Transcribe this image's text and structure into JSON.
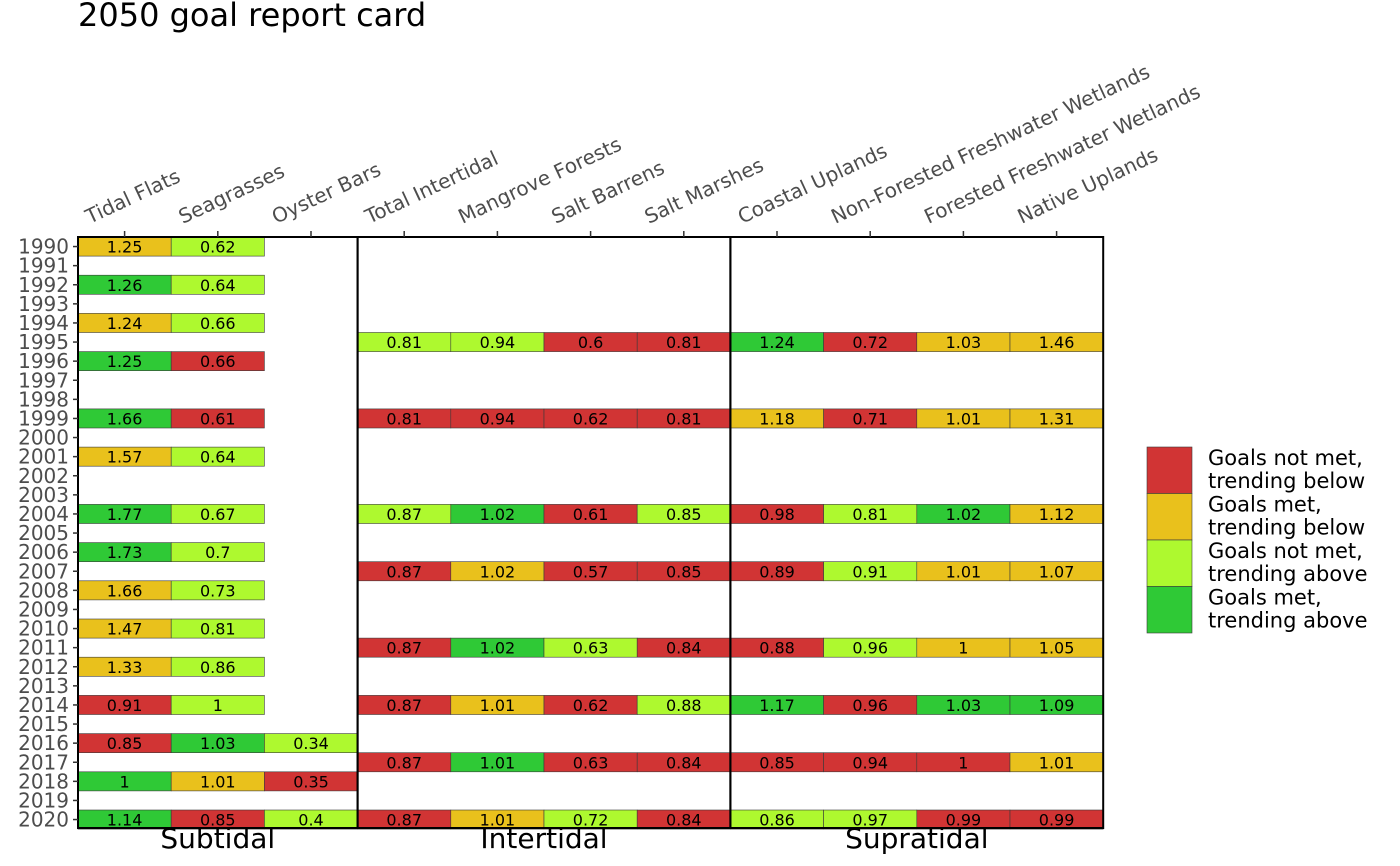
{
  "chart_data": {
    "type": "heatmap",
    "title": "2050 goal report card",
    "columns": [
      "Tidal Flats",
      "Seagrasses",
      "Oyster Bars",
      "Total Intertidal",
      "Mangrove Forests",
      "Salt Barrens",
      "Salt Marshes",
      "Coastal Uplands",
      "Non-Forested Freshwater Wetlands",
      "Forested Freshwater Wetlands",
      "Native Uplands"
    ],
    "groups": [
      {
        "name": "Subtidal",
        "columns": [
          "Tidal Flats",
          "Seagrasses",
          "Oyster Bars"
        ]
      },
      {
        "name": "Intertidal",
        "columns": [
          "Total Intertidal",
          "Mangrove Forests",
          "Salt Barrens",
          "Salt Marshes"
        ]
      },
      {
        "name": "Supratidal",
        "columns": [
          "Coastal Uplands",
          "Non-Forested Freshwater Wetlands",
          "Forested Freshwater Wetlands",
          "Native Uplands"
        ]
      }
    ],
    "years": [
      "1990",
      "1991",
      "1992",
      "1993",
      "1994",
      "1995",
      "1996",
      "1997",
      "1998",
      "1999",
      "2000",
      "2001",
      "2002",
      "2003",
      "2004",
      "2005",
      "2006",
      "2007",
      "2008",
      "2009",
      "2010",
      "2011",
      "2012",
      "2013",
      "2014",
      "2015",
      "2016",
      "2017",
      "2018",
      "2019",
      "2020"
    ],
    "categories": [
      {
        "key": "nm_below",
        "label": "Goals not met, trending below",
        "lines": [
          "Goals not met,",
          "trending below"
        ],
        "color": "#D13434"
      },
      {
        "key": "m_below",
        "label": "Goals met, trending below",
        "lines": [
          "Goals met,",
          "trending below"
        ],
        "color": "#E9C11C"
      },
      {
        "key": "nm_above",
        "label": "Goals not met, trending above",
        "lines": [
          "Goals not met,",
          "trending above"
        ],
        "color": "#AEF92F"
      },
      {
        "key": "m_above",
        "label": "Goals met, trending above",
        "lines": [
          "Goals met,",
          "trending above"
        ],
        "color": "#2FC936"
      }
    ],
    "rows": [
      {
        "year": "1990",
        "cells": [
          [
            "1.25",
            "m_below"
          ],
          [
            "0.62",
            "nm_above"
          ],
          null,
          null,
          null,
          null,
          null,
          null,
          null,
          null,
          null
        ]
      },
      {
        "year": "1992",
        "cells": [
          [
            "1.26",
            "m_above"
          ],
          [
            "0.64",
            "nm_above"
          ],
          null,
          null,
          null,
          null,
          null,
          null,
          null,
          null,
          null
        ]
      },
      {
        "year": "1994",
        "cells": [
          [
            "1.24",
            "m_below"
          ],
          [
            "0.66",
            "nm_above"
          ],
          null,
          null,
          null,
          null,
          null,
          null,
          null,
          null,
          null
        ]
      },
      {
        "year": "1995",
        "cells": [
          null,
          null,
          null,
          [
            "0.81",
            "nm_above"
          ],
          [
            "0.94",
            "nm_above"
          ],
          [
            "0.6",
            "nm_below"
          ],
          [
            "0.81",
            "nm_below"
          ],
          [
            "1.24",
            "m_above"
          ],
          [
            "0.72",
            "nm_below"
          ],
          [
            "1.03",
            "m_below"
          ],
          [
            "1.46",
            "m_below"
          ]
        ]
      },
      {
        "year": "1996",
        "cells": [
          [
            "1.25",
            "m_above"
          ],
          [
            "0.66",
            "nm_below"
          ],
          null,
          null,
          null,
          null,
          null,
          null,
          null,
          null,
          null
        ]
      },
      {
        "year": "1999",
        "cells": [
          [
            "1.66",
            "m_above"
          ],
          [
            "0.61",
            "nm_below"
          ],
          null,
          [
            "0.81",
            "nm_below"
          ],
          [
            "0.94",
            "nm_below"
          ],
          [
            "0.62",
            "nm_below"
          ],
          [
            "0.81",
            "nm_below"
          ],
          [
            "1.18",
            "m_below"
          ],
          [
            "0.71",
            "nm_below"
          ],
          [
            "1.01",
            "m_below"
          ],
          [
            "1.31",
            "m_below"
          ]
        ]
      },
      {
        "year": "2001",
        "cells": [
          [
            "1.57",
            "m_below"
          ],
          [
            "0.64",
            "nm_above"
          ],
          null,
          null,
          null,
          null,
          null,
          null,
          null,
          null,
          null
        ]
      },
      {
        "year": "2004",
        "cells": [
          [
            "1.77",
            "m_above"
          ],
          [
            "0.67",
            "nm_above"
          ],
          null,
          [
            "0.87",
            "nm_above"
          ],
          [
            "1.02",
            "m_above"
          ],
          [
            "0.61",
            "nm_below"
          ],
          [
            "0.85",
            "nm_above"
          ],
          [
            "0.98",
            "nm_below"
          ],
          [
            "0.81",
            "nm_above"
          ],
          [
            "1.02",
            "m_above"
          ],
          [
            "1.12",
            "m_below"
          ]
        ]
      },
      {
        "year": "2006",
        "cells": [
          [
            "1.73",
            "m_above"
          ],
          [
            "0.7",
            "nm_above"
          ],
          null,
          null,
          null,
          null,
          null,
          null,
          null,
          null,
          null
        ]
      },
      {
        "year": "2007",
        "cells": [
          null,
          null,
          null,
          [
            "0.87",
            "nm_below"
          ],
          [
            "1.02",
            "m_below"
          ],
          [
            "0.57",
            "nm_below"
          ],
          [
            "0.85",
            "nm_below"
          ],
          [
            "0.89",
            "nm_below"
          ],
          [
            "0.91",
            "nm_above"
          ],
          [
            "1.01",
            "m_below"
          ],
          [
            "1.07",
            "m_below"
          ]
        ]
      },
      {
        "year": "2008",
        "cells": [
          [
            "1.66",
            "m_below"
          ],
          [
            "0.73",
            "nm_above"
          ],
          null,
          null,
          null,
          null,
          null,
          null,
          null,
          null,
          null
        ]
      },
      {
        "year": "2010",
        "cells": [
          [
            "1.47",
            "m_below"
          ],
          [
            "0.81",
            "nm_above"
          ],
          null,
          null,
          null,
          null,
          null,
          null,
          null,
          null,
          null
        ]
      },
      {
        "year": "2011",
        "cells": [
          null,
          null,
          null,
          [
            "0.87",
            "nm_below"
          ],
          [
            "1.02",
            "m_above"
          ],
          [
            "0.63",
            "nm_above"
          ],
          [
            "0.84",
            "nm_below"
          ],
          [
            "0.88",
            "nm_below"
          ],
          [
            "0.96",
            "nm_above"
          ],
          [
            "1",
            "m_below"
          ],
          [
            "1.05",
            "m_below"
          ]
        ]
      },
      {
        "year": "2012",
        "cells": [
          [
            "1.33",
            "m_below"
          ],
          [
            "0.86",
            "nm_above"
          ],
          null,
          null,
          null,
          null,
          null,
          null,
          null,
          null,
          null
        ]
      },
      {
        "year": "2014",
        "cells": [
          [
            "0.91",
            "nm_below"
          ],
          [
            "1",
            "nm_above"
          ],
          null,
          [
            "0.87",
            "nm_below"
          ],
          [
            "1.01",
            "m_below"
          ],
          [
            "0.62",
            "nm_below"
          ],
          [
            "0.88",
            "nm_above"
          ],
          [
            "1.17",
            "m_above"
          ],
          [
            "0.96",
            "nm_below"
          ],
          [
            "1.03",
            "m_above"
          ],
          [
            "1.09",
            "m_above"
          ]
        ]
      },
      {
        "year": "2016",
        "cells": [
          [
            "0.85",
            "nm_below"
          ],
          [
            "1.03",
            "m_above"
          ],
          [
            "0.34",
            "nm_above"
          ],
          null,
          null,
          null,
          null,
          null,
          null,
          null,
          null
        ]
      },
      {
        "year": "2017",
        "cells": [
          null,
          null,
          null,
          [
            "0.87",
            "nm_below"
          ],
          [
            "1.01",
            "m_above"
          ],
          [
            "0.63",
            "nm_below"
          ],
          [
            "0.84",
            "nm_below"
          ],
          [
            "0.85",
            "nm_below"
          ],
          [
            "0.94",
            "nm_below"
          ],
          [
            "1",
            "nm_below"
          ],
          [
            "1.01",
            "m_below"
          ]
        ]
      },
      {
        "year": "2018",
        "cells": [
          [
            "1",
            "m_above"
          ],
          [
            "1.01",
            "m_below"
          ],
          [
            "0.35",
            "nm_below"
          ],
          null,
          null,
          null,
          null,
          null,
          null,
          null,
          null
        ]
      },
      {
        "year": "2020",
        "cells": [
          [
            "1.14",
            "m_above"
          ],
          [
            "0.85",
            "nm_below"
          ],
          [
            "0.4",
            "nm_above"
          ],
          [
            "0.87",
            "nm_below"
          ],
          [
            "1.01",
            "m_below"
          ],
          [
            "0.72",
            "nm_above"
          ],
          [
            "0.84",
            "nm_below"
          ],
          [
            "0.86",
            "nm_above"
          ],
          [
            "0.97",
            "nm_above"
          ],
          [
            "0.99",
            "nm_below"
          ],
          [
            "0.99",
            "nm_below"
          ]
        ]
      }
    ]
  }
}
